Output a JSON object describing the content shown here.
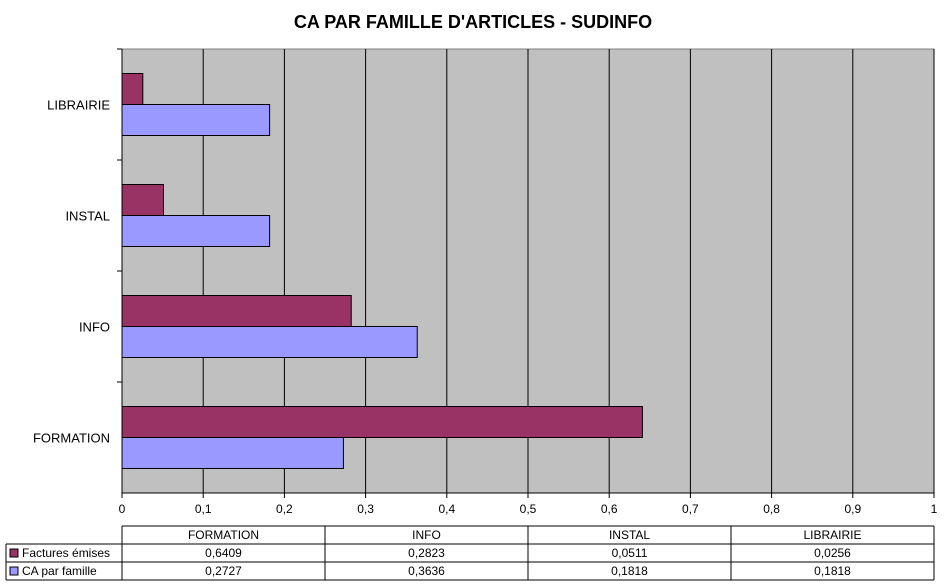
{
  "chart_data": {
    "type": "bar",
    "orientation": "horizontal",
    "title": "CA PAR FAMILLE D'ARTICLES - SUDINFO",
    "categories": [
      "FORMATION",
      "INFO",
      "INSTAL",
      "LIBRAIRIE"
    ],
    "series": [
      {
        "name": "Factures émises",
        "color": "#993366",
        "values": [
          0.6409,
          0.2823,
          0.0511,
          0.0256
        ],
        "labels": [
          "0,6409",
          "0,2823",
          "0,0511",
          "0,0256"
        ]
      },
      {
        "name": "CA par famille",
        "color": "#9999ff",
        "values": [
          0.2727,
          0.3636,
          0.1818,
          0.1818
        ],
        "labels": [
          "0,2727",
          "0,3636",
          "0,1818",
          "0,1818"
        ]
      }
    ],
    "xlim": [
      0,
      1
    ],
    "x_ticks": [
      "0",
      "0,1",
      "0,2",
      "0,3",
      "0,4",
      "0,5",
      "0,6",
      "0,7",
      "0,8",
      "0,9",
      "1"
    ],
    "plot_background": "#c0c0c0",
    "grid": true,
    "legend": "data-table"
  }
}
